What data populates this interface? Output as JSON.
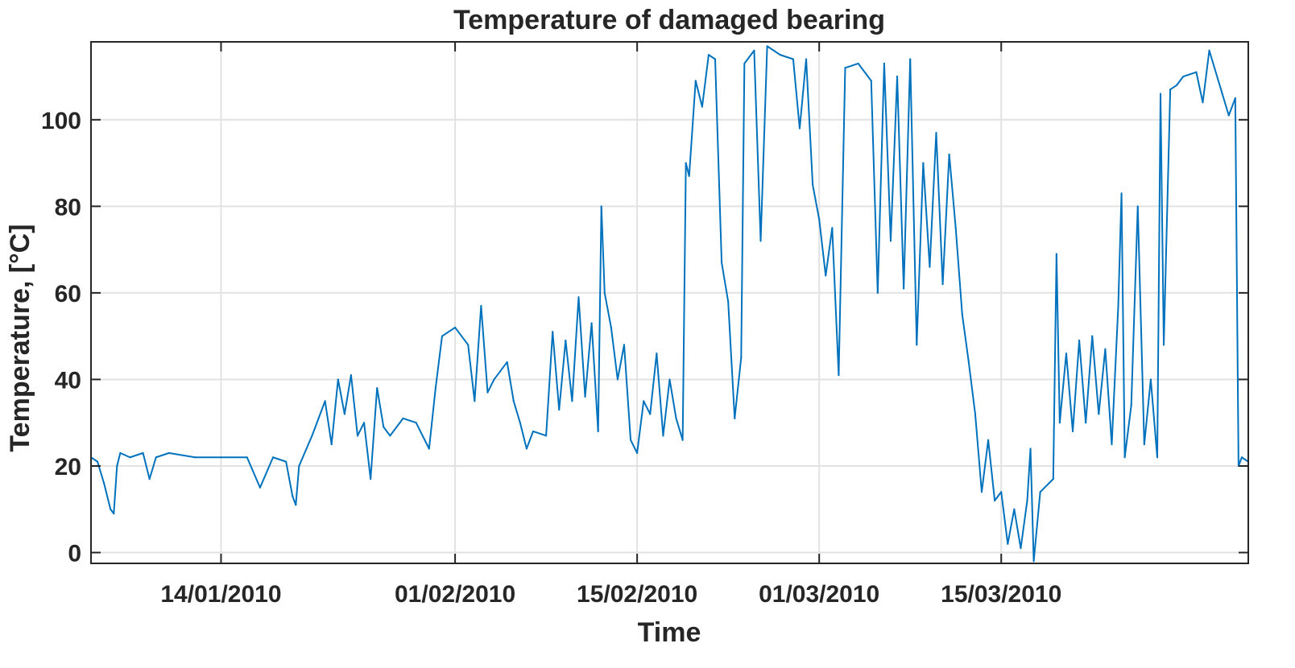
{
  "chart_data": {
    "type": "line",
    "title": "Temperature of damaged bearing",
    "xlabel": "Time",
    "ylabel": "Temperature, [°C]",
    "x_ticks": [
      "14/01/2010",
      "01/02/2010",
      "15/02/2010",
      "01/03/2010",
      "15/03/2010"
    ],
    "y_ticks": [
      0,
      20,
      40,
      60,
      80,
      100
    ],
    "xlim": [
      "2010-01-04",
      "2010-04-03"
    ],
    "ylim": [
      -2.5,
      118
    ],
    "grid": true,
    "series_color": "#0072BD",
    "series": [
      {
        "points": [
          [
            "2010-01-04",
            22
          ],
          [
            "2010-01-04 12:00",
            21
          ],
          [
            "2010-01-05",
            16
          ],
          [
            "2010-01-05 12:00",
            10
          ],
          [
            "2010-01-05 18:00",
            9
          ],
          [
            "2010-01-06",
            20
          ],
          [
            "2010-01-06 06:00",
            23
          ],
          [
            "2010-01-07",
            22
          ],
          [
            "2010-01-08",
            23
          ],
          [
            "2010-01-08 12:00",
            17
          ],
          [
            "2010-01-09",
            22
          ],
          [
            "2010-01-10",
            23
          ],
          [
            "2010-01-12",
            22
          ],
          [
            "2010-01-14",
            22
          ],
          [
            "2010-01-16",
            22
          ],
          [
            "2010-01-17",
            15
          ],
          [
            "2010-01-18",
            22
          ],
          [
            "2010-01-19",
            21
          ],
          [
            "2010-01-19 12:00",
            13
          ],
          [
            "2010-01-19 18:00",
            11
          ],
          [
            "2010-01-20",
            20
          ],
          [
            "2010-01-21",
            27
          ],
          [
            "2010-01-22",
            35
          ],
          [
            "2010-01-22 12:00",
            25
          ],
          [
            "2010-01-23",
            40
          ],
          [
            "2010-01-23 12:00",
            32
          ],
          [
            "2010-01-24",
            41
          ],
          [
            "2010-01-24 12:00",
            27
          ],
          [
            "2010-01-25",
            30
          ],
          [
            "2010-01-25 12:00",
            17
          ],
          [
            "2010-01-26",
            38
          ],
          [
            "2010-01-26 12:00",
            29
          ],
          [
            "2010-01-27",
            27
          ],
          [
            "2010-01-28",
            31
          ],
          [
            "2010-01-29",
            30
          ],
          [
            "2010-01-30",
            24
          ],
          [
            "2010-01-30 12:00",
            38
          ],
          [
            "2010-01-31",
            50
          ],
          [
            "2010-02-01",
            52
          ],
          [
            "2010-02-02",
            48
          ],
          [
            "2010-02-02 12:00",
            35
          ],
          [
            "2010-02-03",
            57
          ],
          [
            "2010-02-03 12:00",
            37
          ],
          [
            "2010-02-04",
            40
          ],
          [
            "2010-02-05",
            44
          ],
          [
            "2010-02-05 12:00",
            35
          ],
          [
            "2010-02-06",
            30
          ],
          [
            "2010-02-06 12:00",
            24
          ],
          [
            "2010-02-07",
            28
          ],
          [
            "2010-02-08",
            27
          ],
          [
            "2010-02-08 12:00",
            51
          ],
          [
            "2010-02-09",
            33
          ],
          [
            "2010-02-09 12:00",
            49
          ],
          [
            "2010-02-10",
            35
          ],
          [
            "2010-02-10 12:00",
            59
          ],
          [
            "2010-02-11",
            36
          ],
          [
            "2010-02-11 12:00",
            53
          ],
          [
            "2010-02-12",
            28
          ],
          [
            "2010-02-12 06:00",
            80
          ],
          [
            "2010-02-12 12:00",
            60
          ],
          [
            "2010-02-13",
            52
          ],
          [
            "2010-02-13 12:00",
            40
          ],
          [
            "2010-02-14",
            48
          ],
          [
            "2010-02-14 12:00",
            26
          ],
          [
            "2010-02-15",
            23
          ],
          [
            "2010-02-15 12:00",
            35
          ],
          [
            "2010-02-16",
            32
          ],
          [
            "2010-02-16 12:00",
            46
          ],
          [
            "2010-02-17",
            27
          ],
          [
            "2010-02-17 12:00",
            40
          ],
          [
            "2010-02-18",
            31
          ],
          [
            "2010-02-18 12:00",
            26
          ],
          [
            "2010-02-18 18:00",
            90
          ],
          [
            "2010-02-19",
            87
          ],
          [
            "2010-02-19 12:00",
            109
          ],
          [
            "2010-02-20",
            103
          ],
          [
            "2010-02-20 12:00",
            115
          ],
          [
            "2010-02-21",
            114
          ],
          [
            "2010-02-21 12:00",
            67
          ],
          [
            "2010-02-22",
            58
          ],
          [
            "2010-02-22 12:00",
            31
          ],
          [
            "2010-02-23",
            45
          ],
          [
            "2010-02-23 06:00",
            113
          ],
          [
            "2010-02-24",
            116
          ],
          [
            "2010-02-24 12:00",
            72
          ],
          [
            "2010-02-25",
            117
          ],
          [
            "2010-02-26",
            115
          ],
          [
            "2010-02-27",
            114
          ],
          [
            "2010-02-27 12:00",
            98
          ],
          [
            "2010-02-28",
            114
          ],
          [
            "2010-02-28 12:00",
            85
          ],
          [
            "2010-03-01",
            77
          ],
          [
            "2010-03-01 12:00",
            64
          ],
          [
            "2010-03-02",
            75
          ],
          [
            "2010-03-02 12:00",
            41
          ],
          [
            "2010-03-03",
            112
          ],
          [
            "2010-03-04",
            113
          ],
          [
            "2010-03-05",
            109
          ],
          [
            "2010-03-05 12:00",
            60
          ],
          [
            "2010-03-06",
            113
          ],
          [
            "2010-03-06 12:00",
            72
          ],
          [
            "2010-03-07",
            110
          ],
          [
            "2010-03-07 12:00",
            61
          ],
          [
            "2010-03-08",
            114
          ],
          [
            "2010-03-08 12:00",
            48
          ],
          [
            "2010-03-09",
            90
          ],
          [
            "2010-03-09 12:00",
            66
          ],
          [
            "2010-03-10",
            97
          ],
          [
            "2010-03-10 12:00",
            62
          ],
          [
            "2010-03-11",
            92
          ],
          [
            "2010-03-11 12:00",
            75
          ],
          [
            "2010-03-12",
            55
          ],
          [
            "2010-03-12 12:00",
            44
          ],
          [
            "2010-03-13",
            32
          ],
          [
            "2010-03-13 12:00",
            14
          ],
          [
            "2010-03-14",
            26
          ],
          [
            "2010-03-14 12:00",
            12
          ],
          [
            "2010-03-15",
            14
          ],
          [
            "2010-03-15 12:00",
            2
          ],
          [
            "2010-03-16",
            10
          ],
          [
            "2010-03-16 12:00",
            1
          ],
          [
            "2010-03-17",
            12
          ],
          [
            "2010-03-17 06:00",
            24
          ],
          [
            "2010-03-17 12:00",
            -2
          ],
          [
            "2010-03-18",
            14
          ],
          [
            "2010-03-19",
            17
          ],
          [
            "2010-03-19 06:00",
            69
          ],
          [
            "2010-03-19 12:00",
            30
          ],
          [
            "2010-03-20",
            46
          ],
          [
            "2010-03-20 12:00",
            28
          ],
          [
            "2010-03-21",
            49
          ],
          [
            "2010-03-21 12:00",
            30
          ],
          [
            "2010-03-22",
            50
          ],
          [
            "2010-03-22 12:00",
            32
          ],
          [
            "2010-03-23",
            47
          ],
          [
            "2010-03-23 12:00",
            25
          ],
          [
            "2010-03-24",
            57
          ],
          [
            "2010-03-24 06:00",
            83
          ],
          [
            "2010-03-24 12:00",
            22
          ],
          [
            "2010-03-25",
            34
          ],
          [
            "2010-03-25 12:00",
            80
          ],
          [
            "2010-03-26",
            25
          ],
          [
            "2010-03-26 12:00",
            40
          ],
          [
            "2010-03-27",
            22
          ],
          [
            "2010-03-27 06:00",
            106
          ],
          [
            "2010-03-27 12:00",
            48
          ],
          [
            "2010-03-28",
            107
          ],
          [
            "2010-03-28 12:00",
            108
          ],
          [
            "2010-03-29",
            110
          ],
          [
            "2010-03-30",
            111
          ],
          [
            "2010-03-30 12:00",
            104
          ],
          [
            "2010-03-31",
            116
          ],
          [
            "2010-04-01",
            106
          ],
          [
            "2010-04-01 12:00",
            101
          ],
          [
            "2010-04-02",
            105
          ],
          [
            "2010-04-02 06:00",
            20
          ],
          [
            "2010-04-02 12:00",
            22
          ],
          [
            "2010-04-03",
            21
          ]
        ]
      }
    ]
  }
}
